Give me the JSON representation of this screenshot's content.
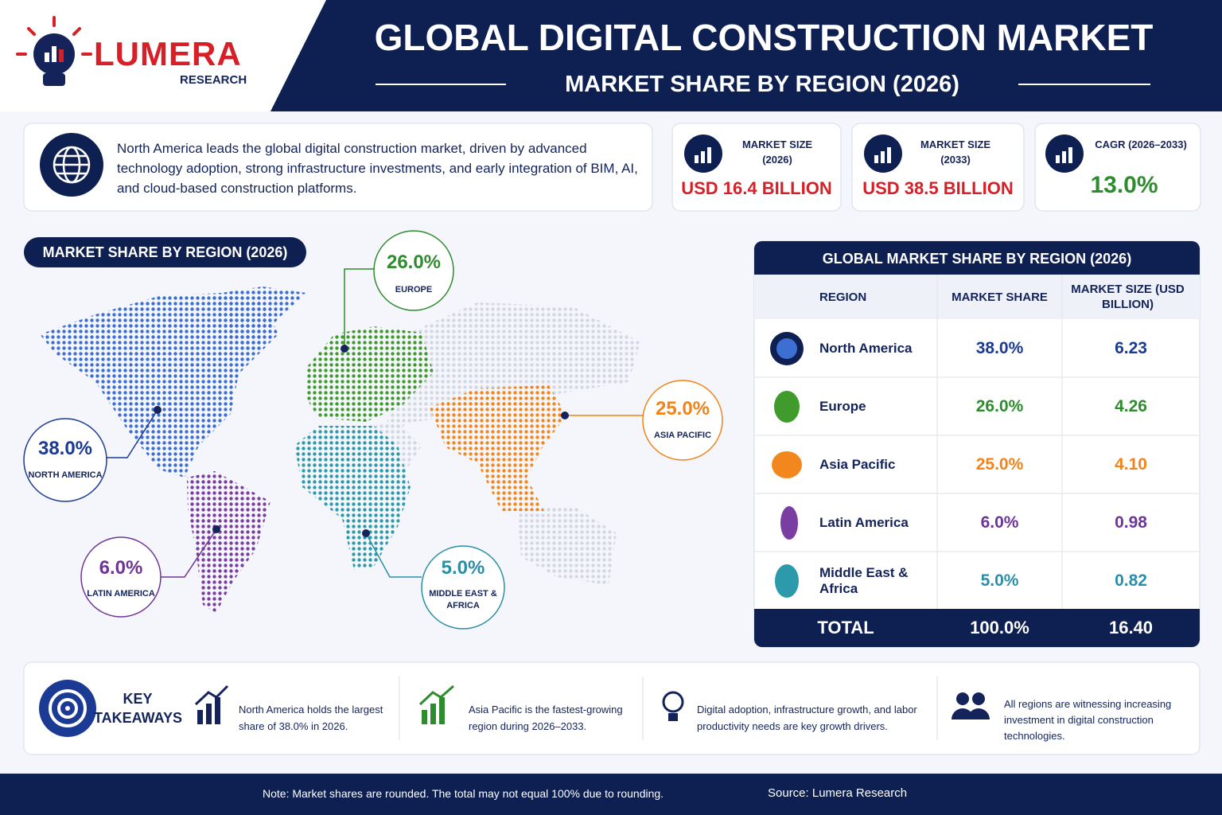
{
  "header": {
    "brand": "LUMERA",
    "brand_sub": "RESEARCH",
    "title": "GLOBAL DIGITAL CONSTRUCTION MARKET",
    "subtitle": "MARKET SHARE BY REGION (2026)"
  },
  "summary": "North America leads the global digital construction market, driven by advanced technology adoption, strong infrastructure investments, and early integration of BIM, AI, and cloud-based construction platforms.",
  "stats": [
    {
      "label": "MARKET SIZE",
      "period": "(2026)",
      "value": "USD 16.4 BILLION"
    },
    {
      "label": "MARKET SIZE",
      "period": "(2033)",
      "value": "USD 38.5 BILLION"
    },
    {
      "label": "CAGR (2026–2033)",
      "value": "13.0%"
    }
  ],
  "map": {
    "title": "MARKET SHARE BY REGION (2026)",
    "callouts": [
      {
        "value": "38.0%",
        "label": "NORTH AMERICA"
      },
      {
        "value": "26.0%",
        "label": "EUROPE"
      },
      {
        "value": "25.0%",
        "label": "ASIA PACIFIC"
      },
      {
        "value": "6.0%",
        "label": "LATIN AMERICA"
      },
      {
        "value": "5.0%",
        "label": "MIDDLE EAST & AFRICA"
      }
    ]
  },
  "table": {
    "title": "GLOBAL MARKET SHARE BY REGION (2026)",
    "headers": [
      "REGION",
      "MARKET SHARE",
      "MARKET SIZE (USD BILLION)"
    ],
    "rows": [
      [
        "North America",
        "38.0%",
        "6.23"
      ],
      [
        "Europe",
        "26.0%",
        "4.26"
      ],
      [
        "Asia Pacific",
        "25.0%",
        "4.10"
      ],
      [
        "Latin America",
        "6.0%",
        "0.98"
      ],
      [
        "Middle East & Africa",
        "5.0%",
        "0.82"
      ]
    ],
    "total": [
      "TOTAL",
      "100.0%",
      "16.40"
    ]
  },
  "takeaways": {
    "title": "KEY TAKEAWAYS",
    "items": [
      "North America holds the largest share of 38.0% in 2026.",
      "Asia Pacific is the fastest-growing region during 2026–2033.",
      "Digital adoption, infrastructure growth, and labor productivity needs are key growth drivers.",
      "All regions are witnessing increasing investment in digital construction technologies."
    ]
  },
  "footer": {
    "note": "Note: Market shares are rounded. The total may not equal 100% due to rounding.",
    "source": "Source: Lumera Research"
  }
}
